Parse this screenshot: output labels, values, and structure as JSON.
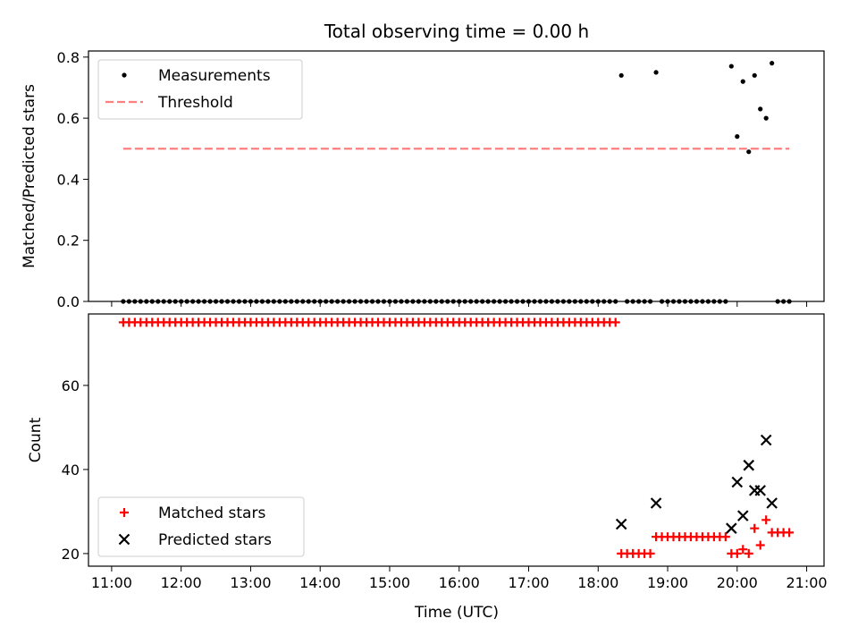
{
  "chart_data": {
    "type": "scatter",
    "title": "Total observing time = 0.00 h",
    "xlabel": "Time (UTC)",
    "x_tick_labels": [
      "11:00",
      "12:00",
      "13:00",
      "14:00",
      "15:00",
      "16:00",
      "17:00",
      "18:00",
      "19:00",
      "20:00",
      "21:00"
    ],
    "panels": [
      {
        "ylabel": "Matched/Predicted stars",
        "ylim": [
          0,
          0.82
        ],
        "yticks": [
          0.0,
          0.2,
          0.4,
          0.6,
          0.8
        ],
        "legend_position": "top-left",
        "series": [
          {
            "name": "Measurements",
            "marker": "dot",
            "color": "#000000",
            "zero_runs": [
              {
                "start": "11:10",
                "end": "18:15",
                "step_min": 5
              },
              {
                "start": "18:25",
                "end": "18:45",
                "step_min": 5
              },
              {
                "start": "18:55",
                "end": "19:50",
                "step_min": 5
              },
              {
                "start": "20:35",
                "end": "20:45",
                "step_min": 5
              }
            ],
            "points": [
              {
                "x": "18:20",
                "y": 0.74
              },
              {
                "x": "18:50",
                "y": 0.75
              },
              {
                "x": "19:55",
                "y": 0.77
              },
              {
                "x": "20:00",
                "y": 0.54
              },
              {
                "x": "20:05",
                "y": 0.72
              },
              {
                "x": "20:10",
                "y": 0.49
              },
              {
                "x": "20:15",
                "y": 0.74
              },
              {
                "x": "20:20",
                "y": 0.63
              },
              {
                "x": "20:25",
                "y": 0.6
              },
              {
                "x": "20:30",
                "y": 0.78
              }
            ]
          },
          {
            "name": "Threshold",
            "line": "dashed",
            "color": "#ff7f7f",
            "x": [
              "11:10",
              "20:45"
            ],
            "y": [
              0.5,
              0.5
            ]
          }
        ]
      },
      {
        "ylabel": "Count",
        "ylim": [
          17,
          77
        ],
        "yticks": [
          20,
          40,
          60
        ],
        "legend_position": "bottom-left",
        "series": [
          {
            "name": "Matched stars",
            "marker": "plus",
            "color": "#ff0000",
            "runs": [
              {
                "start": "11:10",
                "end": "18:15",
                "step_min": 5,
                "y": 75
              },
              {
                "start": "18:20",
                "end": "18:45",
                "step_min": 5,
                "y": 20
              },
              {
                "start": "18:50",
                "end": "19:50",
                "step_min": 5,
                "y": 24
              }
            ],
            "points": [
              {
                "x": "19:55",
                "y": 20
              },
              {
                "x": "20:00",
                "y": 20
              },
              {
                "x": "20:05",
                "y": 21
              },
              {
                "x": "20:10",
                "y": 20
              },
              {
                "x": "20:15",
                "y": 26
              },
              {
                "x": "20:20",
                "y": 22
              },
              {
                "x": "20:25",
                "y": 28
              },
              {
                "x": "20:30",
                "y": 25
              },
              {
                "x": "20:35",
                "y": 25
              },
              {
                "x": "20:40",
                "y": 25
              },
              {
                "x": "20:45",
                "y": 25
              }
            ]
          },
          {
            "name": "Predicted stars",
            "marker": "x",
            "color": "#000000",
            "points": [
              {
                "x": "18:20",
                "y": 27
              },
              {
                "x": "18:50",
                "y": 32
              },
              {
                "x": "19:55",
                "y": 26
              },
              {
                "x": "20:00",
                "y": 37
              },
              {
                "x": "20:05",
                "y": 29
              },
              {
                "x": "20:10",
                "y": 41
              },
              {
                "x": "20:15",
                "y": 35
              },
              {
                "x": "20:20",
                "y": 35
              },
              {
                "x": "20:25",
                "y": 47
              },
              {
                "x": "20:30",
                "y": 32
              }
            ]
          }
        ]
      }
    ]
  }
}
